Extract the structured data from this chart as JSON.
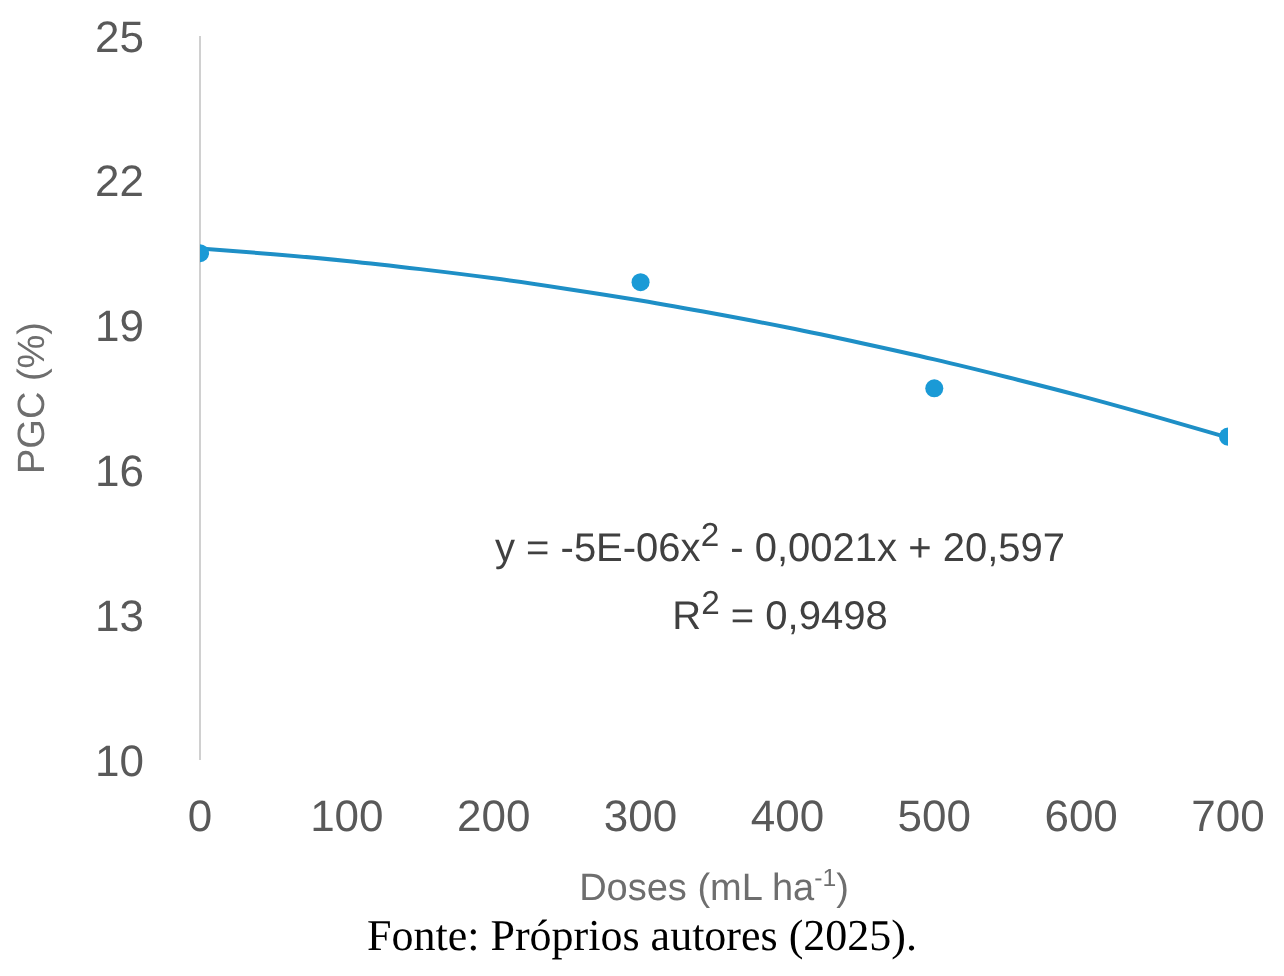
{
  "chart_data": {
    "type": "scatter",
    "xlabel": "Doses (mL ha$^{-1}$)",
    "ylabel": "PGC (%)",
    "xlim": [
      0,
      700
    ],
    "xticks": [
      0,
      100,
      200,
      300,
      400,
      500,
      600,
      700
    ],
    "ylim": [
      10,
      25
    ],
    "yticks": [
      10,
      13,
      16,
      19,
      22,
      25
    ],
    "line_style": "solid",
    "series": [
      {
        "marker": "circle",
        "color": "#1a9ad6",
        "x": [
          0,
          300,
          500,
          700
        ],
        "values": [
          20.5,
          19.9,
          17.7,
          16.7
        ]
      },
      {
        "type": "line",
        "marker": "none",
        "color": "#1e8fc6",
        "x": [
          0,
          50,
          100,
          150,
          200,
          250,
          300,
          350,
          400,
          450,
          500,
          550,
          600,
          650,
          700
        ],
        "values": [
          20.6,
          20.48,
          20.34,
          20.17,
          19.98,
          19.76,
          19.52,
          19.25,
          18.96,
          18.64,
          18.3,
          17.93,
          17.54,
          17.12,
          16.68
        ]
      }
    ],
    "annotations": [
      "y = -5E-06x$^{2}$ - 0,0021x + 20,597",
      "R$^{2}$ = 0,9498",
      "Fonte: Próprios autores (2025)."
    ]
  }
}
